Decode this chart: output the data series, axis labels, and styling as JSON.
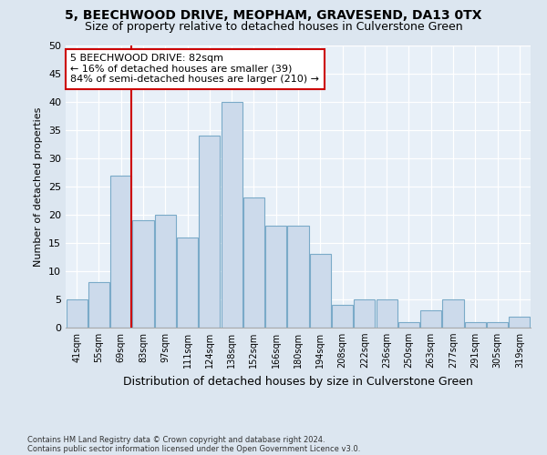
{
  "title": "5, BEECHWOOD DRIVE, MEOPHAM, GRAVESEND, DA13 0TX",
  "subtitle": "Size of property relative to detached houses in Culverstone Green",
  "xlabel": "Distribution of detached houses by size in Culverstone Green",
  "ylabel": "Number of detached properties",
  "footnote1": "Contains HM Land Registry data © Crown copyright and database right 2024.",
  "footnote2": "Contains public sector information licensed under the Open Government Licence v3.0.",
  "bins": [
    "41sqm",
    "55sqm",
    "69sqm",
    "83sqm",
    "97sqm",
    "111sqm",
    "124sqm",
    "138sqm",
    "152sqm",
    "166sqm",
    "180sqm",
    "194sqm",
    "208sqm",
    "222sqm",
    "236sqm",
    "250sqm",
    "263sqm",
    "277sqm",
    "291sqm",
    "305sqm",
    "319sqm"
  ],
  "values": [
    5,
    8,
    27,
    19,
    20,
    16,
    34,
    40,
    23,
    18,
    18,
    13,
    4,
    5,
    5,
    1,
    3,
    5,
    1,
    1,
    2
  ],
  "bar_color": "#ccdaeb",
  "bar_edge_color": "#7aaac8",
  "vline_color": "#cc0000",
  "annotation_title": "5 BEECHWOOD DRIVE: 82sqm",
  "annotation_line1": "← 16% of detached houses are smaller (39)",
  "annotation_line2": "84% of semi-detached houses are larger (210) →",
  "annotation_box_color": "#cc0000",
  "annotation_bg": "#ffffff",
  "ylim": [
    0,
    50
  ],
  "yticks": [
    0,
    5,
    10,
    15,
    20,
    25,
    30,
    35,
    40,
    45,
    50
  ],
  "bg_color": "#dce6f0",
  "plot_bg": "#e8f0f8",
  "title_fontsize": 10,
  "subtitle_fontsize": 9,
  "ylabel_fontsize": 8,
  "xlabel_fontsize": 9
}
